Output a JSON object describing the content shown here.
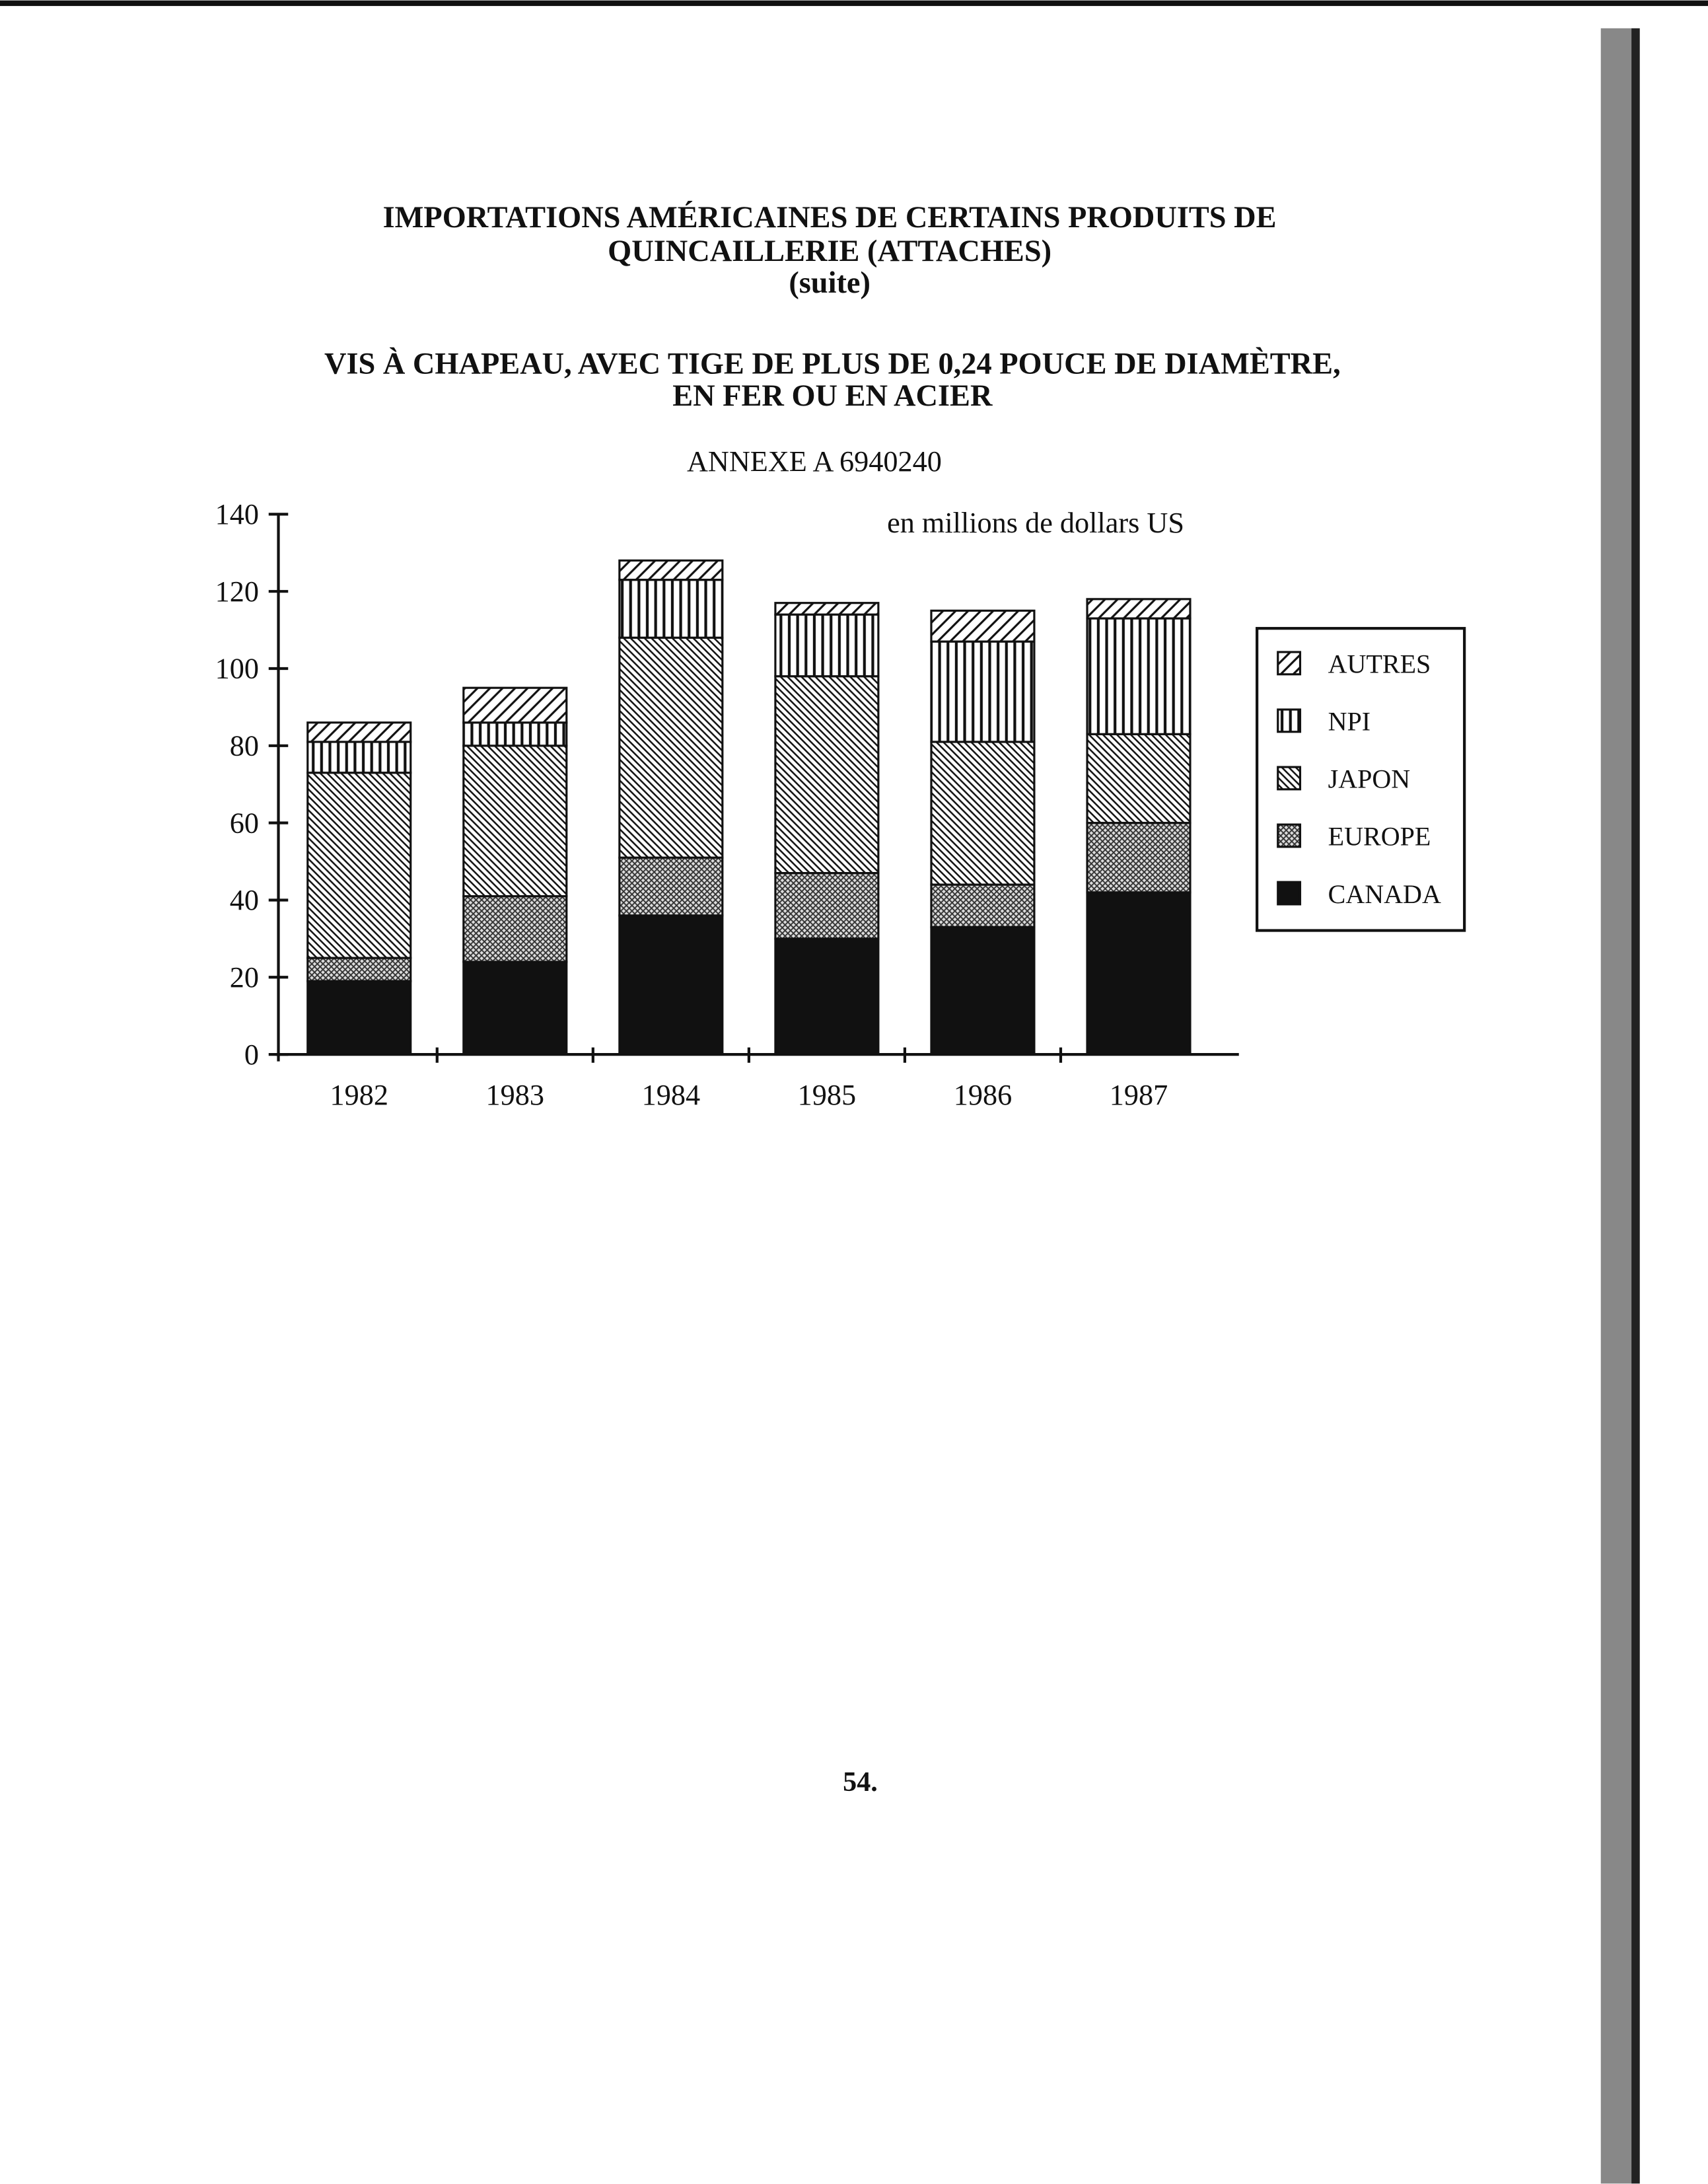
{
  "chart_data": {
    "type": "bar",
    "stacked": true,
    "title": [
      "IMPORTATIONS AMÉRICAINES DE CERTAINS PRODUITS DE",
      "QUINCAILLERIE (ATTACHES)",
      "(suite)"
    ],
    "subtitle": [
      "VIS À CHAPEAU, AVEC TIGE DE PLUS DE 0,24 POUCE DE DIAMÈTRE,",
      "EN FER OU EN ACIER"
    ],
    "annex": "ANNEXE A 6940240",
    "unit_label": "en millions de dollars US",
    "categories": [
      "1982",
      "1983",
      "1984",
      "1985",
      "1986",
      "1987"
    ],
    "series": [
      {
        "name": "CANADA",
        "color": "#111111",
        "pattern": "solid",
        "values": [
          19,
          24,
          36,
          30,
          33,
          42
        ]
      },
      {
        "name": "EUROPE",
        "color": "#111111",
        "pattern": "cross",
        "values": [
          6,
          17,
          15,
          17,
          11,
          18
        ]
      },
      {
        "name": "JAPON",
        "color": "#111111",
        "pattern": "down",
        "values": [
          48,
          39,
          57,
          51,
          37,
          23
        ]
      },
      {
        "name": "NPI",
        "color": "#111111",
        "pattern": "vertical",
        "values": [
          8,
          6,
          15,
          16,
          26,
          30
        ]
      },
      {
        "name": "AUTRES",
        "color": "#111111",
        "pattern": "up",
        "values": [
          5,
          9,
          5,
          3,
          8,
          5
        ]
      }
    ],
    "ylim": [
      0,
      140
    ],
    "yticks": [
      0,
      20,
      40,
      60,
      80,
      100,
      120,
      140
    ],
    "legend": "right",
    "page_number": "54."
  }
}
